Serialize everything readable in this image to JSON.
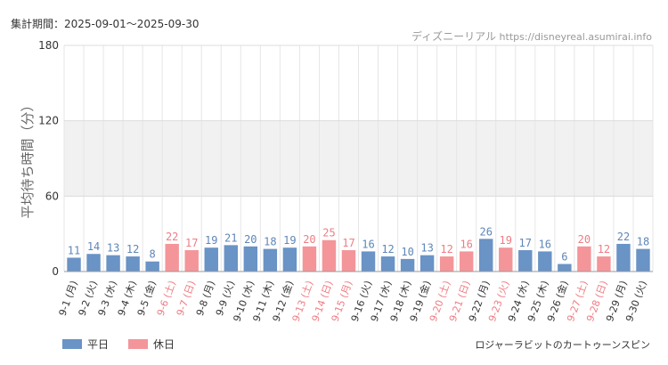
{
  "header": {
    "period_label": "集計期間：2025-09-01～2025-09-30",
    "site_name": "ディズニーリアル",
    "site_url": "https://disneyreal.asumirai.info"
  },
  "footer": {
    "attraction": "ロジャーラビットのカートゥーンスピン"
  },
  "colors": {
    "weekday": "#6a93c6",
    "holiday": "#f4959a",
    "weekday_label": "#5f86b8",
    "holiday_label": "#ef7c82"
  },
  "chart_data": {
    "type": "bar",
    "title": "",
    "xlabel": "",
    "ylabel": "平均待ち時間（分）",
    "ylim": [
      0,
      180
    ],
    "yticks": [
      0,
      60,
      120,
      180
    ],
    "grid": true,
    "legend_position": "bottom-left",
    "categories": [
      "9-1 (月)",
      "9-2 (火)",
      "9-3 (水)",
      "9-4 (木)",
      "9-5 (金)",
      "9-6 (土)",
      "9-7 (日)",
      "9-8 (月)",
      "9-9 (火)",
      "9-10 (水)",
      "9-11 (木)",
      "9-12 (金)",
      "9-13 (土)",
      "9-14 (日)",
      "9-15 (月)",
      "9-16 (火)",
      "9-17 (水)",
      "9-18 (木)",
      "9-19 (金)",
      "9-20 (土)",
      "9-21 (日)",
      "9-22 (月)",
      "9-23 (火)",
      "9-24 (水)",
      "9-25 (木)",
      "9-26 (金)",
      "9-27 (土)",
      "9-28 (日)",
      "9-29 (月)",
      "9-30 (火)"
    ],
    "values": [
      11,
      14,
      13,
      12,
      8,
      22,
      17,
      19,
      21,
      20,
      18,
      19,
      20,
      25,
      17,
      16,
      12,
      10,
      13,
      12,
      16,
      26,
      19,
      17,
      16,
      6,
      20,
      12,
      22,
      18
    ],
    "day_types": [
      "平日",
      "平日",
      "平日",
      "平日",
      "平日",
      "休日",
      "休日",
      "平日",
      "平日",
      "平日",
      "平日",
      "平日",
      "休日",
      "休日",
      "休日",
      "平日",
      "平日",
      "平日",
      "平日",
      "休日",
      "休日",
      "平日",
      "休日",
      "平日",
      "平日",
      "平日",
      "休日",
      "休日",
      "平日",
      "平日"
    ],
    "series": [
      {
        "name": "平日"
      },
      {
        "name": "休日"
      }
    ]
  }
}
